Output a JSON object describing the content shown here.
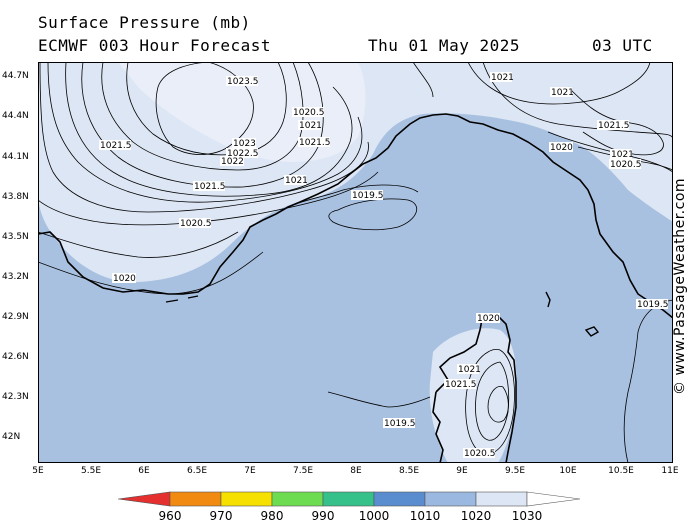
{
  "header": {
    "line1": "Surface Pressure (mb)",
    "line2": "ECMWF 003 Hour Forecast",
    "date": "Thu 01 May 2025",
    "time": "03 UTC"
  },
  "credit": "© www.PassageWeather.com",
  "axes": {
    "lat_ticks": [
      "44.7N",
      "44.4N",
      "44.1N",
      "43.8N",
      "43.5N",
      "43.2N",
      "42.9N",
      "42.6N",
      "42.3N",
      "42N"
    ],
    "lon_ticks": [
      "5E",
      "5.5E",
      "6E",
      "6.5E",
      "7E",
      "7.5E",
      "8E",
      "8.5E",
      "9E",
      "9.5E",
      "10E",
      "10.5E",
      "11E"
    ]
  },
  "contour_labels": [
    "1023.5",
    "1020.5",
    "1021",
    "1021.5",
    "1023",
    "1022.5",
    "1022",
    "1021.5",
    "1021",
    "1021.5",
    "1020.5",
    "1020",
    "1019.5",
    "1021",
    "1021",
    "1021.5",
    "1020",
    "1021",
    "1020.5",
    "1019.5",
    "1020",
    "1021",
    "1021.5",
    "1019.5",
    "1020.5"
  ],
  "colorbar": {
    "labels": [
      "960",
      "970",
      "980",
      "990",
      "1000",
      "1010",
      "1020",
      "1030"
    ],
    "colors": [
      "#e53030",
      "#f08a10",
      "#f5e000",
      "#6edc50",
      "#36c08a",
      "#5a8cd0",
      "#9bb9e0",
      "#dde6f4"
    ],
    "unit": "mb"
  }
}
